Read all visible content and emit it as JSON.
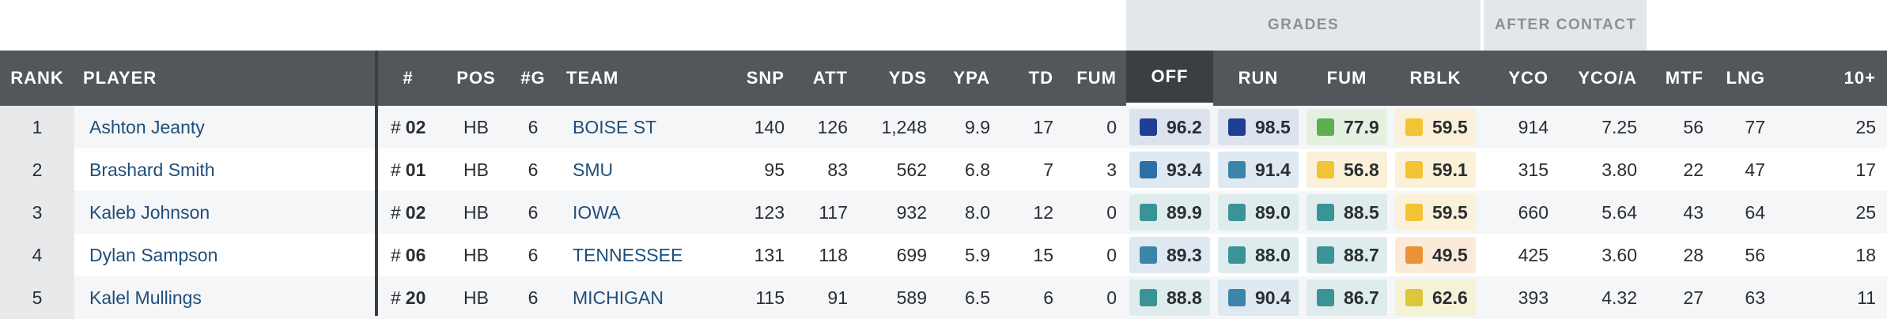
{
  "group_headers": {
    "grades": "GRADES",
    "after_contact": "AFTER CONTACT"
  },
  "columns": {
    "rank": "RANK",
    "player": "PLAYER",
    "jersey": "#",
    "pos": "POS",
    "games": "#G",
    "team": "TEAM",
    "snp": "SNP",
    "att": "ATT",
    "yds": "YDS",
    "ypa": "YPA",
    "td": "TD",
    "fum": "FUM",
    "off": "OFF",
    "run": "RUN",
    "fum_grade": "FUM",
    "rblk": "RBLK",
    "yco": "YCO",
    "yco_a": "YCO/A",
    "mtf": "MTF",
    "lng": "LNG",
    "ten_plus": "10+"
  },
  "grade_colors": {
    "dark_blue": "#1f3f95",
    "mid_blue": "#2e6fa8",
    "steel_blue": "#3a86a8",
    "teal": "#3a9397",
    "green": "#5cae4f",
    "yellow": "#f3c333",
    "orange": "#ec9236",
    "yellow_green": "#dcc73a",
    "bg_dark_blue": "#dde2ef",
    "bg_blue": "#dfe9f2",
    "bg_teal": "#dfecee",
    "bg_green": "#e4f1e1",
    "bg_yellow": "#fbf1d8",
    "bg_orange": "#fbead8",
    "bg_yg": "#f6f2d6"
  },
  "rows": [
    {
      "rank": "1",
      "player": "Ashton Jeanty",
      "hash": "#",
      "jersey": "02",
      "pos": "HB",
      "games": "6",
      "team": "BOISE ST",
      "snp": "140",
      "att": "126",
      "yds": "1,248",
      "ypa": "9.9",
      "td": "17",
      "fum": "0",
      "off": "96.2",
      "run": "98.5",
      "fum_grade": "77.9",
      "rblk": "59.5",
      "yco": "914",
      "yco_a": "7.25",
      "mtf": "56",
      "lng": "77",
      "ten_plus": "25",
      "colors": [
        "dark_blue",
        "dark_blue",
        "green",
        "yellow"
      ]
    },
    {
      "rank": "2",
      "player": "Brashard Smith",
      "hash": "#",
      "jersey": "01",
      "pos": "HB",
      "games": "6",
      "team": "SMU",
      "snp": "95",
      "att": "83",
      "yds": "562",
      "ypa": "6.8",
      "td": "7",
      "fum": "3",
      "off": "93.4",
      "run": "91.4",
      "fum_grade": "56.8",
      "rblk": "59.1",
      "yco": "315",
      "yco_a": "3.80",
      "mtf": "22",
      "lng": "47",
      "ten_plus": "17",
      "colors": [
        "mid_blue",
        "steel_blue",
        "yellow",
        "yellow"
      ]
    },
    {
      "rank": "3",
      "player": "Kaleb Johnson",
      "hash": "#",
      "jersey": "02",
      "pos": "HB",
      "games": "6",
      "team": "IOWA",
      "snp": "123",
      "att": "117",
      "yds": "932",
      "ypa": "8.0",
      "td": "12",
      "fum": "0",
      "off": "89.9",
      "run": "89.0",
      "fum_grade": "88.5",
      "rblk": "59.5",
      "yco": "660",
      "yco_a": "5.64",
      "mtf": "43",
      "lng": "64",
      "ten_plus": "25",
      "colors": [
        "teal",
        "teal",
        "teal",
        "yellow"
      ]
    },
    {
      "rank": "4",
      "player": "Dylan Sampson",
      "hash": "#",
      "jersey": "06",
      "pos": "HB",
      "games": "6",
      "team": "TENNESSEE",
      "snp": "131",
      "att": "118",
      "yds": "699",
      "ypa": "5.9",
      "td": "15",
      "fum": "0",
      "off": "89.3",
      "run": "88.0",
      "fum_grade": "88.7",
      "rblk": "49.5",
      "yco": "425",
      "yco_a": "3.60",
      "mtf": "28",
      "lng": "56",
      "ten_plus": "18",
      "colors": [
        "steel_blue",
        "teal",
        "teal",
        "orange"
      ]
    },
    {
      "rank": "5",
      "player": "Kalel Mullings",
      "hash": "#",
      "jersey": "20",
      "pos": "HB",
      "games": "6",
      "team": "MICHIGAN",
      "snp": "115",
      "att": "91",
      "yds": "589",
      "ypa": "6.5",
      "td": "6",
      "fum": "0",
      "off": "88.8",
      "run": "90.4",
      "fum_grade": "86.7",
      "rblk": "62.6",
      "yco": "393",
      "yco_a": "4.32",
      "mtf": "27",
      "lng": "63",
      "ten_plus": "11",
      "colors": [
        "teal",
        "steel_blue",
        "teal",
        "yellow_green"
      ]
    }
  ]
}
